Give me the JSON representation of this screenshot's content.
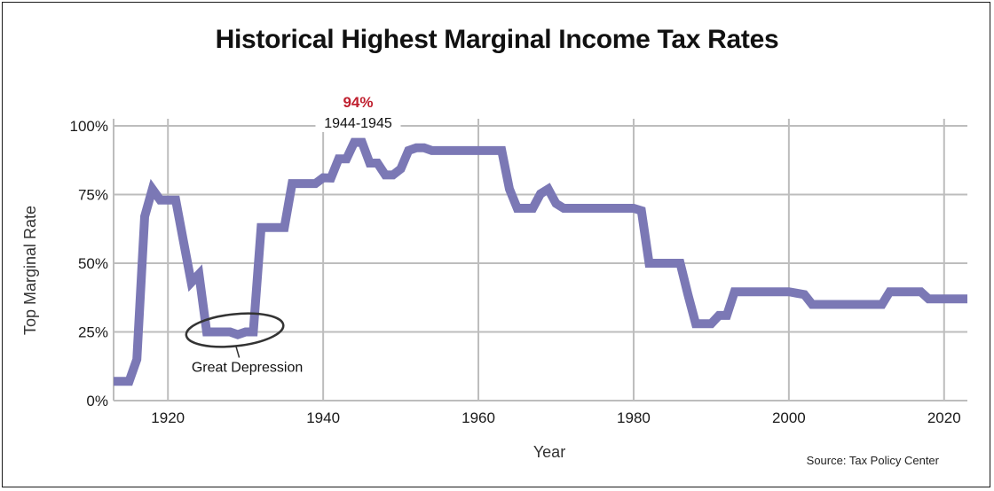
{
  "chart_data": {
    "type": "line",
    "title": "Historical Highest Marginal Income Tax Rates",
    "xlabel": "Year",
    "ylabel": "Top Marginal Rate",
    "source": "Source: Tax Policy Center",
    "xlim": [
      1913,
      2023
    ],
    "ylim": [
      0,
      100
    ],
    "x_ticks": [
      1920,
      1940,
      1960,
      1980,
      2000,
      2020
    ],
    "y_ticks": [
      0,
      25,
      50,
      75,
      100
    ],
    "y_tick_labels": [
      "0%",
      "25%",
      "50%",
      "75%",
      "100%"
    ],
    "grid": true,
    "line_color": "#7b78b5",
    "series": [
      {
        "x": [
          1913,
          1915,
          1916,
          1917,
          1918,
          1919,
          1920,
          1921,
          1922,
          1923,
          1924,
          1925,
          1926,
          1927,
          1928,
          1929,
          1930,
          1931,
          1932,
          1933,
          1934,
          1935,
          1936,
          1937,
          1938,
          1939,
          1940,
          1941,
          1942,
          1943,
          1944,
          1945,
          1946,
          1947,
          1948,
          1949,
          1950,
          1951,
          1952,
          1953,
          1954,
          1963,
          1964,
          1965,
          1967,
          1968,
          1969,
          1970,
          1971,
          1980,
          1981,
          1982,
          1986,
          1987,
          1988,
          1990,
          1991,
          1992,
          1993,
          2000,
          2001,
          2002,
          2003,
          2012,
          2013,
          2017,
          2018,
          2023
        ],
        "y": [
          7,
          7,
          15,
          67,
          77,
          73,
          73,
          73,
          58,
          43,
          46,
          25,
          25,
          25,
          25,
          24,
          25,
          25,
          63,
          63,
          63,
          63,
          79,
          79,
          79,
          79,
          81.1,
          81,
          88,
          88,
          94,
          94,
          86.45,
          86.45,
          82.13,
          82.13,
          84.36,
          91,
          92,
          92,
          91,
          91,
          77,
          70,
          70,
          75.25,
          77,
          71.75,
          70,
          70,
          69.13,
          50,
          50,
          38.5,
          28,
          28,
          31,
          31,
          39.6,
          39.6,
          39.1,
          38.6,
          35,
          35,
          39.6,
          39.6,
          37,
          37
        ]
      }
    ],
    "annotations": [
      {
        "text": "94%",
        "color": "#c0202f",
        "x": 1944.5,
        "y": 94
      },
      {
        "text": "1944-1945",
        "x": 1944.5,
        "y": 94
      },
      {
        "text": "Great Depression",
        "x": 1928.5,
        "y": 25
      }
    ]
  }
}
